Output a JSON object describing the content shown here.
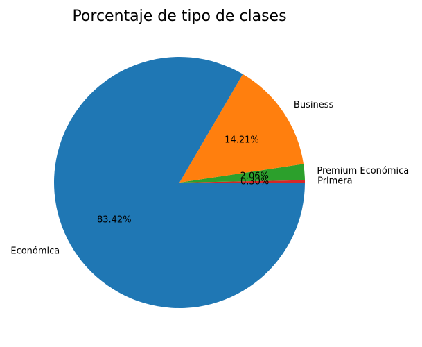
{
  "chart_data": {
    "type": "pie",
    "title": "Porcentaje de tipo de clases",
    "slices": [
      {
        "label": "Primera",
        "value": 0.3,
        "pct_text": "0.30%",
        "color": "#d62728"
      },
      {
        "label": "Premium Económica",
        "value": 2.06,
        "pct_text": "2.06%",
        "color": "#2ca02c"
      },
      {
        "label": "Business",
        "value": 14.21,
        "pct_text": "14.21%",
        "color": "#ff7f0e"
      },
      {
        "label": "Económica",
        "value": 83.42,
        "pct_text": "83.42%",
        "color": "#1f77b4"
      }
    ]
  }
}
